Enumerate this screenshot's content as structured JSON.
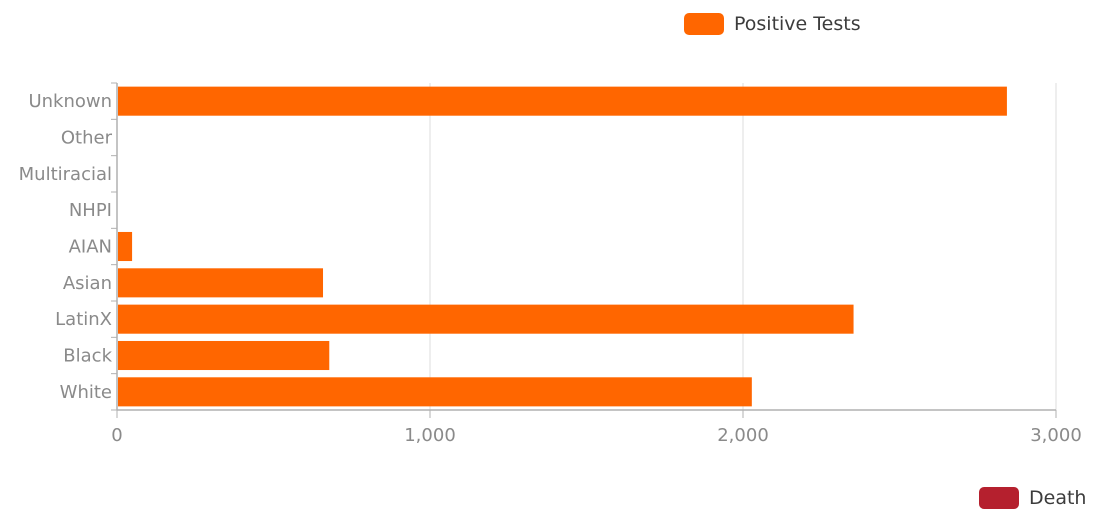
{
  "legend": [
    {
      "label": "Positive Tests",
      "color": "#ff6600"
    },
    {
      "label": "Death",
      "color": "#b5202e"
    }
  ],
  "chart_data": {
    "type": "bar",
    "orientation": "horizontal",
    "categories": [
      "Unknown",
      "Other",
      "Multiracial",
      "NHPI",
      "AIAN",
      "Asian",
      "LatinX",
      "Black",
      "White"
    ],
    "series": [
      {
        "name": "Positive Tests",
        "color": "#ff6600",
        "values": [
          2840,
          0,
          0,
          0,
          45,
          655,
          2350,
          675,
          2025
        ]
      }
    ],
    "xlim": [
      0,
      3000
    ],
    "xticks": [
      {
        "value": 0,
        "label": "0"
      },
      {
        "value": 1000,
        "label": "1,000"
      },
      {
        "value": 2000,
        "label": "2,000"
      },
      {
        "value": 3000,
        "label": "3,000"
      }
    ],
    "grid": "vertical",
    "legend_placement": "top-right"
  }
}
